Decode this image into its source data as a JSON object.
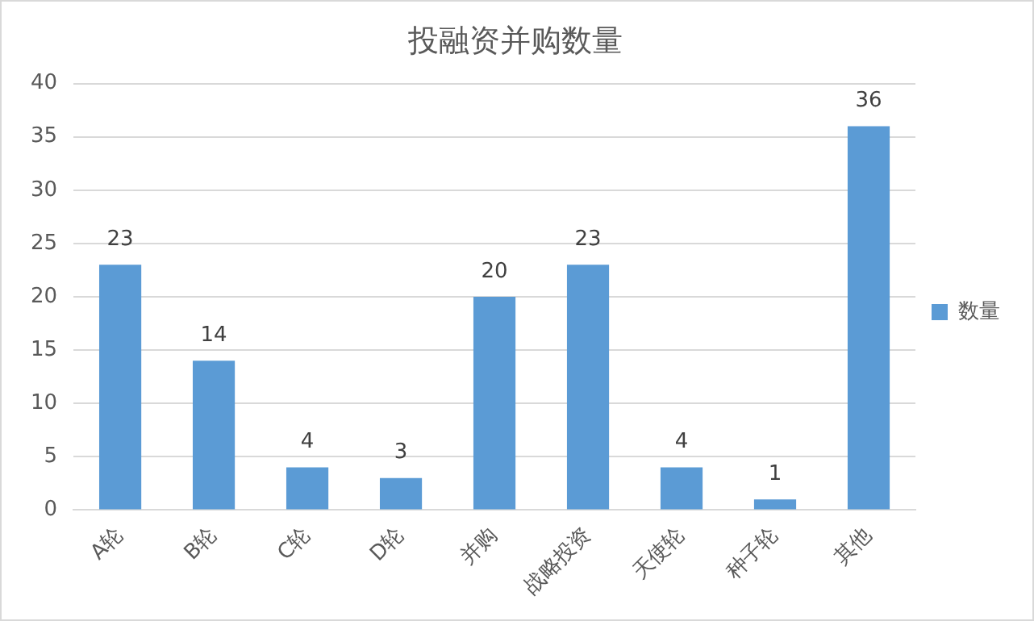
{
  "chart_data": {
    "type": "bar",
    "title": "投融资并购数量",
    "categories": [
      "A轮",
      "B轮",
      "C轮",
      "D轮",
      "并购",
      "战略投资",
      "天使轮",
      "种子轮",
      "其他"
    ],
    "series": [
      {
        "name": "数量",
        "color": "#5b9bd5",
        "values": [
          23,
          14,
          4,
          3,
          20,
          23,
          4,
          1,
          36
        ]
      }
    ],
    "ylim": [
      0,
      40
    ],
    "yticks": [
      0,
      5,
      10,
      15,
      20,
      25,
      30,
      35,
      40
    ],
    "grid": "y",
    "legend": "right",
    "data_labels": true
  }
}
